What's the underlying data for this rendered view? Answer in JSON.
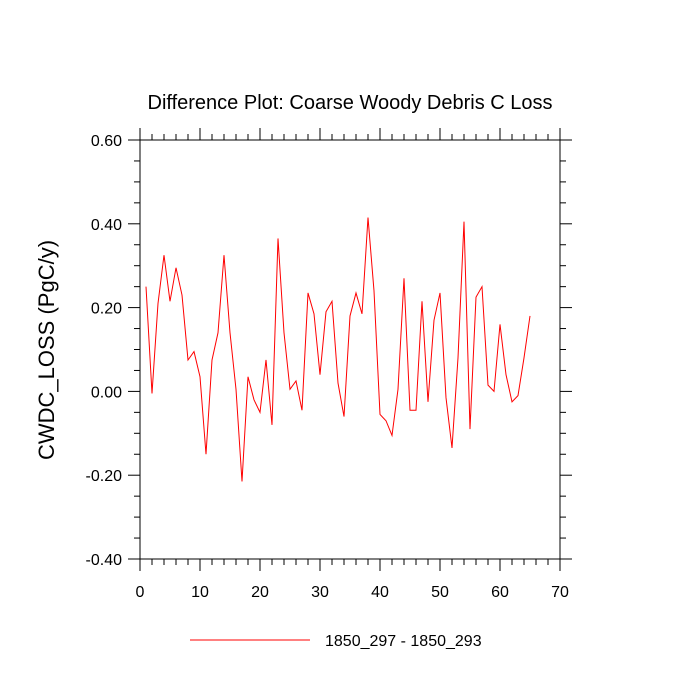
{
  "chart_data": {
    "type": "line",
    "title": "Difference Plot: Coarse Woody Debris C Loss",
    "xlabel": "",
    "ylabel": "CWDC_LOSS  (PgC/y)",
    "xlim": [
      0,
      70
    ],
    "ylim": [
      -0.4,
      0.6
    ],
    "x_ticks": [
      0,
      10,
      20,
      30,
      40,
      50,
      60,
      70
    ],
    "x_tick_labels": [
      "0",
      "10",
      "20",
      "30",
      "40",
      "50",
      "60",
      "70"
    ],
    "y_ticks": [
      -0.4,
      -0.2,
      0.0,
      0.2,
      0.4,
      0.6
    ],
    "y_tick_labels": [
      "-0.40",
      "-0.20",
      "0.00",
      "0.20",
      "0.40",
      "0.60"
    ],
    "grid": false,
    "legend_position": "bottom-center",
    "series": [
      {
        "name": "1850_297 - 1850_293",
        "color": "#ff0000",
        "x": [
          1,
          2,
          3,
          4,
          5,
          6,
          7,
          8,
          9,
          10,
          11,
          12,
          13,
          14,
          15,
          16,
          17,
          18,
          19,
          20,
          21,
          22,
          23,
          24,
          25,
          26,
          27,
          28,
          29,
          30,
          31,
          32,
          33,
          34,
          35,
          36,
          37,
          38,
          39,
          40,
          41,
          42,
          43,
          44,
          45,
          46,
          47,
          48,
          49,
          50,
          51,
          52,
          53,
          54,
          55,
          56,
          57,
          58,
          59,
          60,
          61,
          62,
          63,
          64,
          65
        ],
        "y": [
          0.25,
          -0.005,
          0.21,
          0.325,
          0.215,
          0.295,
          0.23,
          0.075,
          0.095,
          0.035,
          -0.15,
          0.075,
          0.14,
          0.325,
          0.14,
          0.005,
          -0.215,
          0.035,
          -0.02,
          -0.05,
          0.075,
          -0.08,
          0.365,
          0.14,
          0.005,
          0.025,
          -0.045,
          0.235,
          0.185,
          0.04,
          0.19,
          0.215,
          0.02,
          -0.06,
          0.18,
          0.235,
          0.185,
          0.415,
          0.24,
          -0.055,
          -0.07,
          -0.105,
          0.005,
          0.27,
          -0.045,
          -0.045,
          0.215,
          -0.025,
          0.17,
          0.235,
          -0.015,
          -0.135,
          0.08,
          0.405,
          -0.09,
          0.225,
          0.25,
          0.015,
          0.0,
          0.16,
          0.04,
          -0.025,
          -0.01,
          0.08,
          0.18
        ]
      }
    ]
  }
}
